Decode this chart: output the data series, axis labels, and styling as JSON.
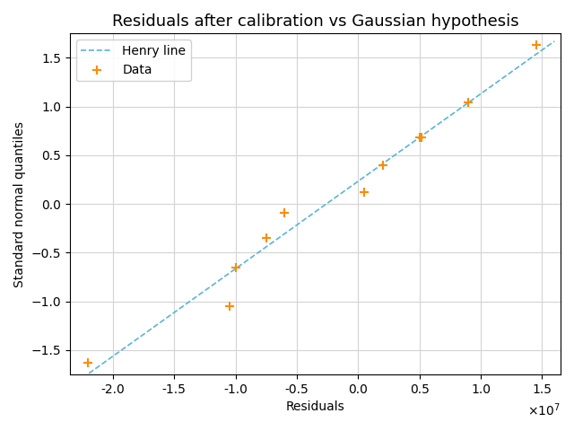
{
  "title": "Residuals after calibration vs Gaussian hypothesis",
  "xlabel": "Residuals",
  "ylabel": "Standard normal quantiles",
  "data_x": [
    -22000000.0,
    -10500000.0,
    -10000000.0,
    -7500000.0,
    -6000000.0,
    500000.0,
    2000000.0,
    5000000.0,
    5200000.0,
    9000000.0,
    14500000.0
  ],
  "data_y": [
    -1.63,
    -1.05,
    -0.65,
    -0.35,
    -0.09,
    0.12,
    0.4,
    0.68,
    0.68,
    1.04,
    1.63
  ],
  "line_x_start": -23000000.0,
  "line_x_end": 16000000.0,
  "line_color": "#5ab4d6",
  "data_color": "#ff8c00",
  "marker": "+",
  "marker_size": 7,
  "line_style": "--",
  "line_width": 1.2,
  "legend_henry": "Henry line",
  "legend_data": "Data",
  "xlim": [
    -23500000.0,
    16500000.0
  ],
  "ylim": [
    -1.75,
    1.75
  ],
  "xticks": [
    -20000000.0,
    -15000000.0,
    -10000000.0,
    -5000000.0,
    0.0,
    5000000.0,
    10000000.0,
    15000000.0
  ],
  "yticks": [
    -1.5,
    -1.0,
    -0.5,
    0.0,
    0.5,
    1.0,
    1.5
  ],
  "grid": true,
  "title_fontsize": 13,
  "axes_fontsize": 10,
  "tick_fontsize": 10
}
